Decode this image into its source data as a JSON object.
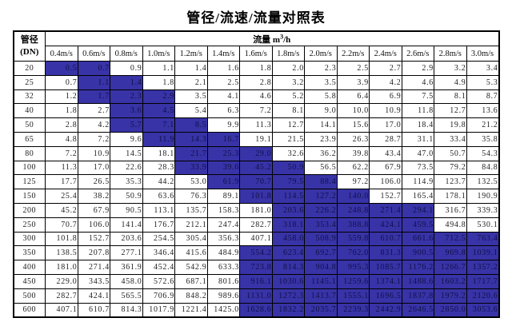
{
  "title": "管径/流速/流量对照表",
  "colors": {
    "highlight_bg": "#3833a6",
    "highlight_text": "#10104a",
    "border": "#000000"
  },
  "table": {
    "corner": {
      "line1": "管径",
      "line2": "(DN)"
    },
    "flow_header": {
      "prefix": "流量 m",
      "sup": "3",
      "suffix": "/h"
    },
    "velocities": [
      "0.4m/s",
      "0.6m/s",
      "0.8m/s",
      "1.0m/s",
      "1.2m/s",
      "1.4m/s",
      "1.6m/s",
      "1.8m/s",
      "2.0m/s",
      "2.2m/s",
      "2.4m/s",
      "2.6m/s",
      "2.8m/s",
      "3.0m/s"
    ],
    "rows": [
      {
        "dn": "20",
        "hl": [
          0,
          1
        ],
        "values": [
          "0.5",
          "0.7",
          "0.9",
          "1.1",
          "1.4",
          "1.6",
          "1.8",
          "2.0",
          "2.3",
          "2.5",
          "2.7",
          "2.9",
          "3.2",
          "3.4"
        ]
      },
      {
        "dn": "25",
        "hl": [
          1,
          2
        ],
        "values": [
          "0.7",
          "1.1",
          "1.4",
          "1.8",
          "2.1",
          "2.5",
          "2.8",
          "3.2",
          "3.5",
          "3.9",
          "4.2",
          "4.6",
          "4.9",
          "5.3"
        ]
      },
      {
        "dn": "32",
        "hl": [
          1,
          3
        ],
        "values": [
          "1.2",
          "1.7",
          "2.3",
          "2.9",
          "3.5",
          "4.1",
          "4.6",
          "5.2",
          "5.8",
          "6.4",
          "6.9",
          "7.5",
          "8.1",
          "8.7"
        ]
      },
      {
        "dn": "40",
        "hl": [
          2,
          3
        ],
        "values": [
          "1.8",
          "2.7",
          "3.6",
          "4.5",
          "5.4",
          "6.3",
          "7.2",
          "8.1",
          "9.0",
          "10.0",
          "10.9",
          "11.8",
          "12.7",
          "13.6"
        ]
      },
      {
        "dn": "50",
        "hl": [
          2,
          4
        ],
        "values": [
          "2.8",
          "4.2",
          "5.7",
          "7.1",
          "8.5",
          "9.9",
          "11.3",
          "12.7",
          "14.1",
          "15.6",
          "17.0",
          "18.4",
          "19.8",
          "21.2"
        ]
      },
      {
        "dn": "65",
        "hl": [
          3,
          5
        ],
        "values": [
          "4.8",
          "7.2",
          "9.6",
          "11.9",
          "14.3",
          "16.7",
          "19.1",
          "21.5",
          "23.9",
          "26.3",
          "28.7",
          "31.1",
          "33.4",
          "35.8"
        ]
      },
      {
        "dn": "80",
        "hl": [
          4,
          6
        ],
        "values": [
          "7.2",
          "10.9",
          "14.5",
          "18.1",
          "21.7",
          "25.3",
          "29.0",
          "32.6",
          "36.2",
          "39.8",
          "43.4",
          "47.0",
          "50.7",
          "54.3"
        ]
      },
      {
        "dn": "100",
        "hl": [
          4,
          7
        ],
        "values": [
          "11.3",
          "17.0",
          "22.6",
          "28.3",
          "33.9",
          "39.6",
          "45.2",
          "50.9",
          "56.5",
          "62.2",
          "67.9",
          "73.5",
          "79.2",
          "84.8"
        ]
      },
      {
        "dn": "125",
        "hl": [
          5,
          8
        ],
        "values": [
          "17.7",
          "26.5",
          "35.3",
          "44.2",
          "53.0",
          "61.9",
          "70.7",
          "79.5",
          "88.4",
          "97.2",
          "106.0",
          "114.9",
          "123.7",
          "132.5"
        ]
      },
      {
        "dn": "150",
        "hl": [
          6,
          9
        ],
        "values": [
          "25.4",
          "38.2",
          "50.9",
          "63.6",
          "76.3",
          "89.1",
          "101.8",
          "114.5",
          "127.2",
          "140.0",
          "152.7",
          "165.4",
          "178.1",
          "190.9"
        ]
      },
      {
        "dn": "200",
        "hl": [
          7,
          11
        ],
        "values": [
          "45.2",
          "67.9",
          "90.5",
          "113.1",
          "135.7",
          "158.3",
          "181.0",
          "203.6",
          "226.2",
          "248.8",
          "271.4",
          "294.1",
          "316.7",
          "339.3"
        ]
      },
      {
        "dn": "250",
        "hl": [
          7,
          11
        ],
        "values": [
          "70.7",
          "106.0",
          "141.4",
          "176.7",
          "212.1",
          "247.4",
          "282.7",
          "318.1",
          "353.4",
          "388.8",
          "424.1",
          "459.5",
          "494.8",
          "530.1"
        ]
      },
      {
        "dn": "300",
        "hl": [
          7,
          13
        ],
        "values": [
          "101.8",
          "152.7",
          "203.6",
          "254.5",
          "305.4",
          "356.3",
          "407.1",
          "458.0",
          "508.9",
          "559.8",
          "610.7",
          "661.6",
          "712.5",
          "763.4"
        ]
      },
      {
        "dn": "350",
        "hl": [
          6,
          13
        ],
        "values": [
          "138.5",
          "207.8",
          "277.1",
          "346.4",
          "415.6",
          "484.9",
          "554.2",
          "623.4",
          "692.7",
          "762.0",
          "831.3",
          "900.5",
          "969.8",
          "1039.1"
        ]
      },
      {
        "dn": "400",
        "hl": [
          6,
          13
        ],
        "values": [
          "181.0",
          "271.4",
          "361.9",
          "452.4",
          "542.9",
          "633.3",
          "723.8",
          "814.3",
          "904.8",
          "995.3",
          "1085.7",
          "1176.2",
          "1266.7",
          "1357.2"
        ]
      },
      {
        "dn": "450",
        "hl": [
          6,
          13
        ],
        "values": [
          "229.0",
          "343.5",
          "458.0",
          "572.6",
          "687.1",
          "801.6",
          "916.1",
          "1030.6",
          "1145.1",
          "1259.6",
          "1374.1",
          "1488.6",
          "1603.2",
          "1717.7"
        ]
      },
      {
        "dn": "500",
        "hl": [
          6,
          13
        ],
        "values": [
          "282.7",
          "424.1",
          "565.5",
          "706.9",
          "848.2",
          "989.6",
          "1131.0",
          "1272.3",
          "1413.7",
          "1555.1",
          "1696.5",
          "1837.8",
          "1979.2",
          "2120.6"
        ]
      },
      {
        "dn": "600",
        "hl": [
          6,
          13
        ],
        "values": [
          "407.1",
          "610.7",
          "814.3",
          "1017.9",
          "1221.4",
          "1425.0",
          "1628.6",
          "1832.2",
          "2035.7",
          "2239.3",
          "2442.9",
          "2646.5",
          "2850.0",
          "3053.6"
        ]
      }
    ]
  }
}
